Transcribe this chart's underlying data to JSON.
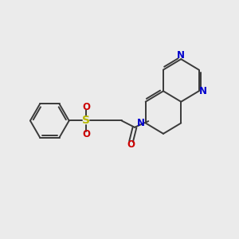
{
  "bg_color": "#ebebeb",
  "bond_color": "#3a3a3a",
  "bond_width": 1.4,
  "N_color": "#0000cc",
  "O_color": "#cc0000",
  "S_color": "#b8b800",
  "font_size_atom": 8.5,
  "figsize": [
    3.0,
    3.0
  ],
  "dpi": 100,
  "xlim": [
    0,
    10
  ],
  "ylim": [
    2,
    8.5
  ]
}
